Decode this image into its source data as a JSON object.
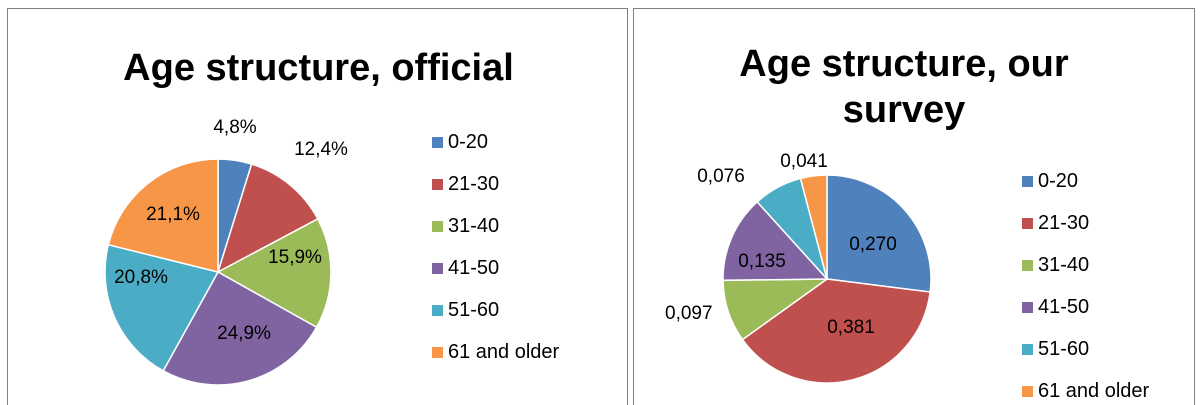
{
  "chart_data": [
    {
      "type": "pie",
      "title": "Age structure, official",
      "categories": [
        "0-20",
        "21-30",
        "31-40",
        "41-50",
        "51-60",
        "61 and older"
      ],
      "values": [
        4.8,
        12.4,
        15.9,
        24.9,
        20.8,
        21.1
      ],
      "data_labels": [
        "4,8%",
        "12,4%",
        "15,9%",
        "24,9%",
        "20,8%",
        "21,1%"
      ],
      "colors": [
        "#4f81bd",
        "#c0504d",
        "#9bbb59",
        "#8064a2",
        "#4bacc6",
        "#f79646"
      ],
      "legend_position": "right"
    },
    {
      "type": "pie",
      "title": "Age structure, our survey",
      "categories": [
        "0-20",
        "21-30",
        "31-40",
        "41-50",
        "51-60",
        "61 and older"
      ],
      "values": [
        0.27,
        0.381,
        0.097,
        0.135,
        0.076,
        0.041
      ],
      "data_labels": [
        "0,270",
        "0,381",
        "0,097",
        "0,135",
        "0,076",
        "0,041"
      ],
      "colors": [
        "#4f81bd",
        "#c0504d",
        "#9bbb59",
        "#8064a2",
        "#4bacc6",
        "#f79646"
      ],
      "legend_position": "right"
    }
  ]
}
